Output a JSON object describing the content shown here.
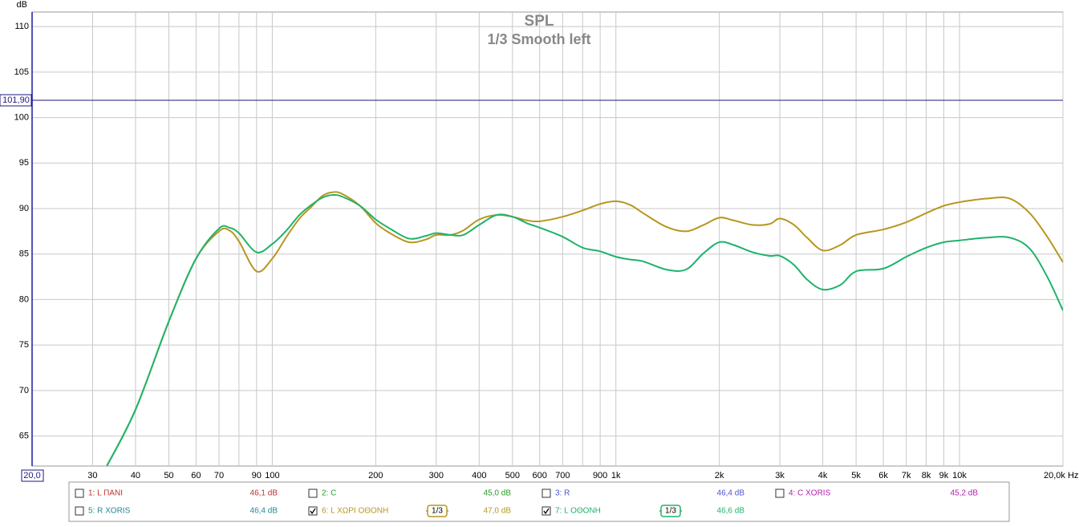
{
  "chart_data": {
    "type": "line",
    "title": "SPL",
    "subtitle": "1/3 Smooth left",
    "y_label": "dB",
    "x_log": true,
    "grid": true,
    "xlim": [
      20,
      20000
    ],
    "ylim": [
      61.7,
      111.6
    ],
    "yticks": [
      65,
      70,
      75,
      80,
      85,
      90,
      95,
      100,
      105,
      110
    ],
    "xticks": [
      30,
      40,
      50,
      60,
      70,
      90,
      100,
      200,
      300,
      400,
      500,
      600,
      700,
      900,
      {
        "value": 1000,
        "label": "1k"
      },
      {
        "value": 2000,
        "label": "2k"
      },
      {
        "value": 3000,
        "label": "3k"
      },
      {
        "value": 4000,
        "label": "4k"
      },
      {
        "value": 5000,
        "label": "5k"
      },
      {
        "value": 6000,
        "label": "6k"
      },
      {
        "value": 7000,
        "label": "7k"
      },
      {
        "value": 8000,
        "label": "8k"
      },
      {
        "value": 9000,
        "label": "9k"
      },
      {
        "value": 10000,
        "label": "10k"
      },
      {
        "value": 20000,
        "label": "20,0k Hz"
      }
    ],
    "xgrid_minor": [
      80,
      800
    ],
    "y_cursor": {
      "value": 101.9,
      "label": "101,90"
    },
    "x_start_field": {
      "value": 20,
      "label": "20,0"
    },
    "x": [
      33,
      40,
      50,
      60,
      70,
      75,
      80,
      90,
      100,
      110,
      120,
      130,
      140,
      150,
      160,
      180,
      200,
      220,
      250,
      280,
      300,
      330,
      360,
      400,
      450,
      500,
      550,
      600,
      700,
      800,
      900,
      1000,
      1100,
      1200,
      1400,
      1600,
      1800,
      2000,
      2200,
      2500,
      2800,
      3000,
      3300,
      3600,
      4000,
      4500,
      5000,
      6000,
      7000,
      8000,
      9000,
      10000,
      12000,
      14000,
      16000,
      18000,
      20000
    ],
    "series": [
      {
        "name": "1: L ΠΑΝΙ",
        "color": "#c03030",
        "checked": false,
        "level": "46,1 dB"
      },
      {
        "name": "2: C",
        "color": "#2a9a2a",
        "checked": false,
        "level": "45,0 dB"
      },
      {
        "name": "3: R",
        "color": "#5050d0",
        "checked": false,
        "level": "46,4 dB"
      },
      {
        "name": "4: C XORIS",
        "color": "#b020b0",
        "checked": false,
        "level": "45,2 dB"
      },
      {
        "name": "5: R XORIS",
        "color": "#208890",
        "checked": false,
        "level": "46,4 dB"
      },
      {
        "name": "6: L ΧΩΡΙ ΟΘΟΝΗ",
        "color": "#b8961e",
        "checked": true,
        "smoothing": "1/3",
        "level": "47,0 dB",
        "values": [
          61.7,
          67.9,
          77.6,
          84.5,
          87.5,
          87.6,
          86.4,
          83.1,
          84.5,
          86.9,
          88.9,
          90.2,
          91.4,
          91.8,
          91.6,
          90.3,
          88.4,
          87.3,
          86.3,
          86.6,
          87.1,
          87.1,
          87.6,
          88.8,
          89.3,
          89.1,
          88.7,
          88.6,
          89.1,
          89.8,
          90.5,
          90.8,
          90.4,
          89.5,
          88.0,
          87.5,
          88.2,
          89.0,
          88.7,
          88.2,
          88.3,
          88.9,
          88.2,
          86.8,
          85.4,
          86.0,
          87.1,
          87.7,
          88.5,
          89.5,
          90.3,
          90.7,
          91.1,
          91.1,
          89.5,
          86.9,
          84.1
        ]
      },
      {
        "name": "7: L ΟΘΟΝΗ",
        "color": "#1db36a",
        "checked": true,
        "smoothing": "1/3",
        "level": "46,6 dB",
        "values": [
          61.7,
          67.9,
          77.6,
          84.5,
          87.8,
          87.9,
          87.3,
          85.2,
          86.1,
          87.6,
          89.3,
          90.4,
          91.2,
          91.5,
          91.3,
          90.3,
          88.8,
          87.8,
          86.7,
          87.0,
          87.3,
          87.1,
          87.1,
          88.2,
          89.3,
          89.1,
          88.4,
          87.9,
          86.9,
          85.7,
          85.3,
          84.7,
          84.4,
          84.2,
          83.3,
          83.3,
          85.1,
          86.3,
          86.0,
          85.2,
          84.8,
          84.8,
          83.8,
          82.2,
          81.1,
          81.6,
          83.1,
          83.4,
          84.7,
          85.7,
          86.3,
          86.5,
          86.8,
          86.8,
          85.6,
          82.5,
          78.8
        ]
      }
    ]
  }
}
